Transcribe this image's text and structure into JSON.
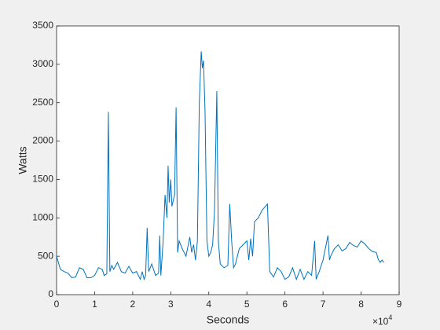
{
  "chart_data": {
    "type": "line",
    "xlabel": "Seconds",
    "ylabel": "Watts",
    "x_multiplier": "×10",
    "x_multiplier_exponent": "4",
    "xlim": [
      0,
      90000
    ],
    "ylim": [
      0,
      3500
    ],
    "xticks": [
      0,
      {
        "value": 10000,
        "label": "1"
      },
      {
        "value": 20000,
        "label": "2"
      },
      {
        "value": 30000,
        "label": "3"
      },
      {
        "value": 40000,
        "label": "4"
      },
      {
        "value": 50000,
        "label": "5"
      },
      {
        "value": 60000,
        "label": "6"
      },
      {
        "value": 70000,
        "label": "7"
      },
      {
        "value": 80000,
        "label": "8"
      },
      {
        "value": 90000,
        "label": "9"
      }
    ],
    "yticks": [
      0,
      500,
      1000,
      1500,
      2000,
      2500,
      3000,
      3500
    ],
    "series": [
      {
        "color": "#0072bd",
        "x": [
          0,
          1000,
          2000,
          3000,
          4000,
          5000,
          6000,
          7000,
          8000,
          9000,
          10000,
          11000,
          12000,
          12500,
          13200,
          13600,
          14000,
          14500,
          15000,
          16000,
          17000,
          18000,
          19000,
          20000,
          21000,
          22000,
          22500,
          23000,
          23400,
          23800,
          24200,
          25000,
          26000,
          26800,
          27100,
          27400,
          28000,
          28500,
          29000,
          29300,
          29600,
          30000,
          30300,
          31000,
          31400,
          31800,
          32200,
          33000,
          34000,
          35000,
          35500,
          36000,
          36500,
          37000,
          37500,
          38000,
          38300,
          38600,
          39000,
          39500,
          40000,
          40500,
          41000,
          41500,
          42100,
          42500,
          43000,
          44000,
          45000,
          45500,
          46000,
          46500,
          47000,
          48000,
          49000,
          50000,
          50500,
          51000,
          51500,
          52000,
          53000,
          54000,
          55400,
          56000,
          57000,
          58000,
          59000,
          60000,
          61000,
          62000,
          63000,
          64000,
          65000,
          66000,
          67000,
          67800,
          68200,
          69000,
          70000,
          71300,
          71700,
          72000,
          73000,
          74000,
          75000,
          76000,
          77000,
          78000,
          79000,
          80000,
          81000,
          82000,
          83000,
          84000,
          84500,
          85000,
          85500,
          86000
        ],
        "values": [
          500,
          330,
          300,
          280,
          220,
          230,
          350,
          330,
          220,
          220,
          250,
          350,
          330,
          250,
          270,
          2380,
          300,
          380,
          330,
          420,
          300,
          280,
          370,
          280,
          300,
          200,
          300,
          200,
          250,
          870,
          300,
          400,
          250,
          280,
          770,
          250,
          700,
          1300,
          1000,
          1680,
          1200,
          1500,
          1150,
          1300,
          2440,
          550,
          700,
          600,
          500,
          750,
          550,
          650,
          450,
          700,
          2500,
          3170,
          2950,
          3050,
          2400,
          700,
          500,
          550,
          650,
          1100,
          2650,
          700,
          400,
          350,
          380,
          1180,
          700,
          350,
          400,
          600,
          650,
          700,
          450,
          730,
          500,
          950,
          1000,
          1100,
          1180,
          300,
          230,
          350,
          300,
          200,
          230,
          350,
          200,
          330,
          200,
          300,
          250,
          700,
          200,
          300,
          450,
          770,
          450,
          500,
          600,
          650,
          570,
          600,
          680,
          640,
          620,
          700,
          660,
          600,
          560,
          550,
          460,
          420,
          450,
          420
        ]
      }
    ]
  }
}
